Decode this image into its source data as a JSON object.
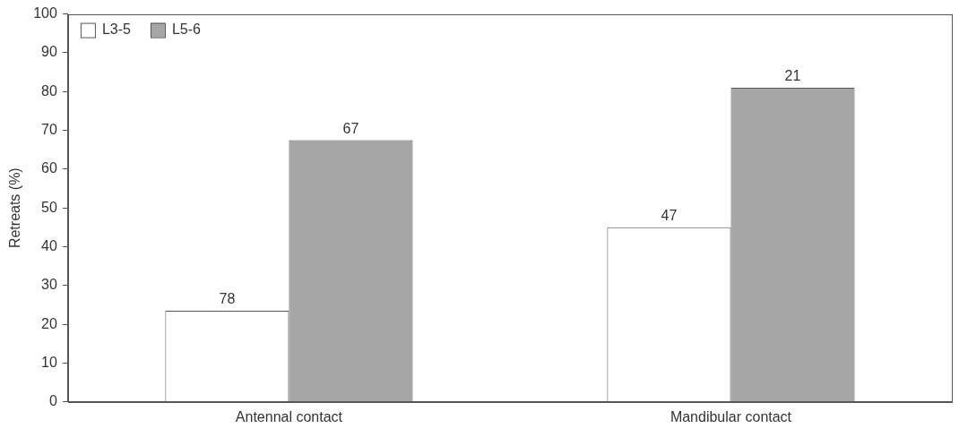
{
  "chart_data": {
    "type": "bar",
    "y_label": "Retreats (%)",
    "categories": [
      "Antennal contact",
      "Mandibular contact"
    ],
    "series": [
      {
        "name": "L3-5",
        "color": "#ffffff",
        "values": [
          23.5,
          45
        ],
        "n": [
          78,
          47
        ]
      },
      {
        "name": "L5-6",
        "color": "#a6a6a6",
        "values": [
          67.5,
          81
        ],
        "n": [
          67,
          21
        ]
      }
    ],
    "ylim": [
      0,
      100
    ],
    "yticks": [
      0,
      10,
      20,
      30,
      40,
      50,
      60,
      70,
      80,
      90,
      100
    ],
    "grid": false,
    "legend": "upper left"
  }
}
